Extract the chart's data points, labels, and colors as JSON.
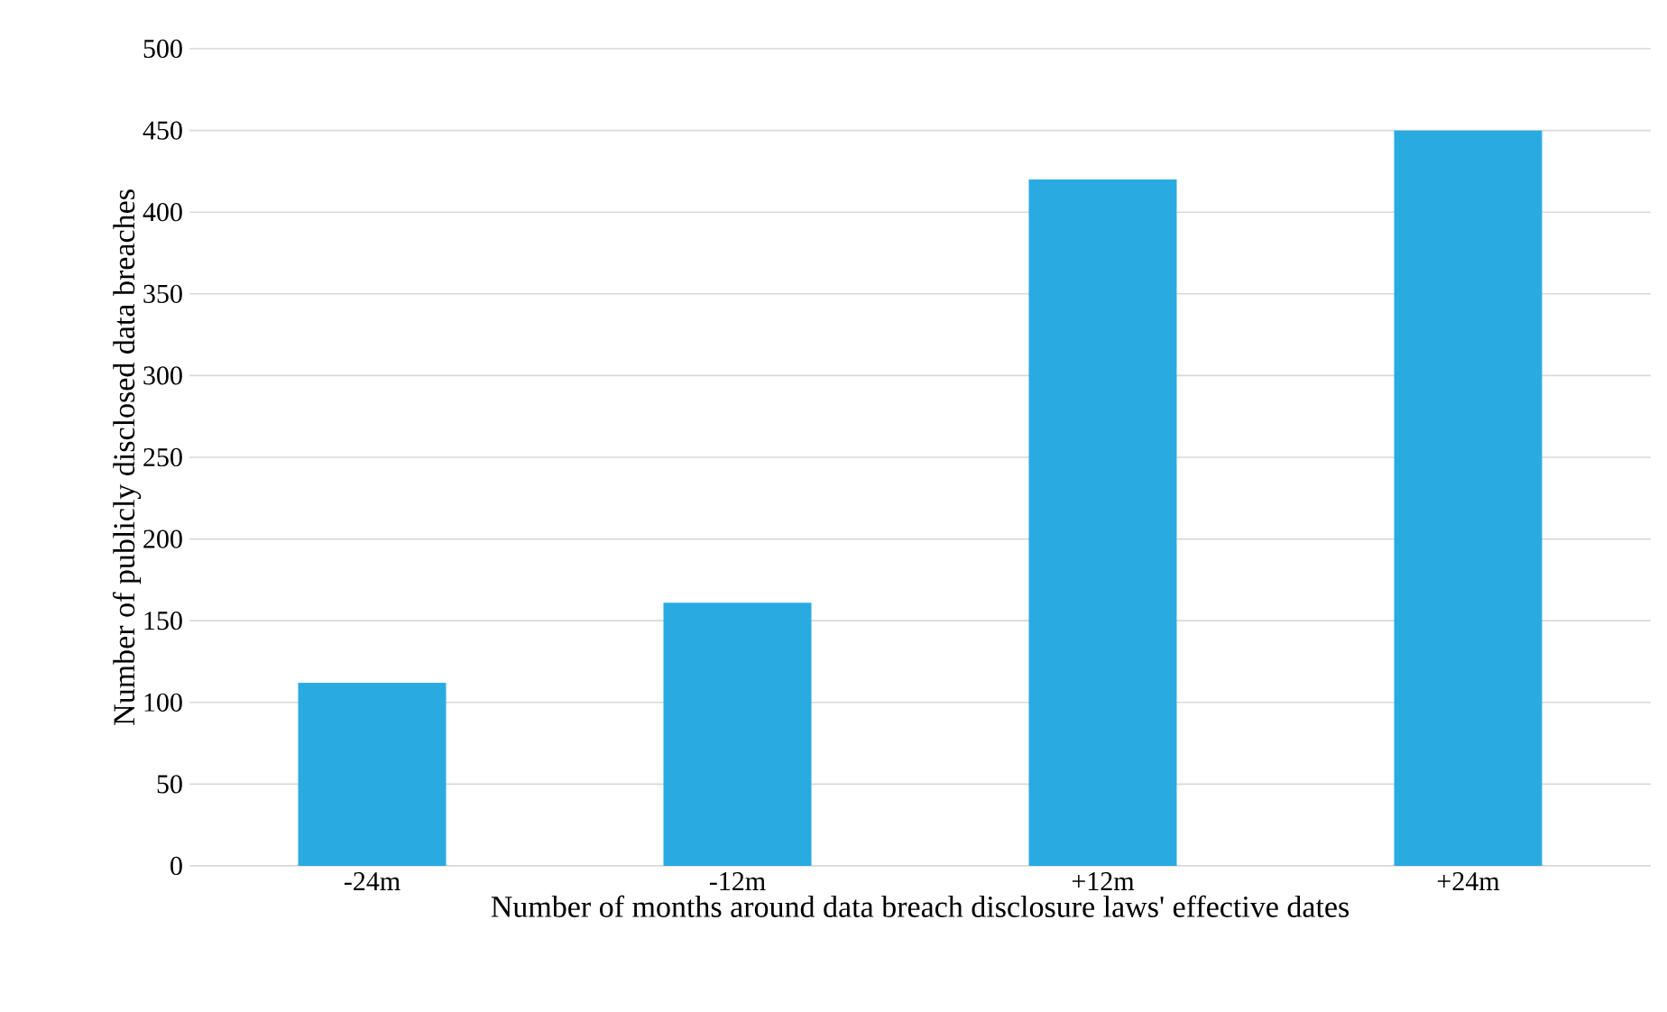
{
  "chart_data": {
    "type": "bar",
    "xlabel": "Number of months around data breach disclosure laws' effective dates",
    "ylabel": "Number of publicly disclosed data breaches",
    "categories": [
      "-24m",
      "-12m",
      "+12m",
      "+24m"
    ],
    "values": [
      112,
      161,
      420,
      450
    ],
    "color": "#29abe2",
    "ylim": [
      0,
      500
    ],
    "yticks": [
      0,
      50,
      100,
      150,
      200,
      250,
      300,
      350,
      400,
      450,
      500
    ],
    "grid": "y"
  }
}
